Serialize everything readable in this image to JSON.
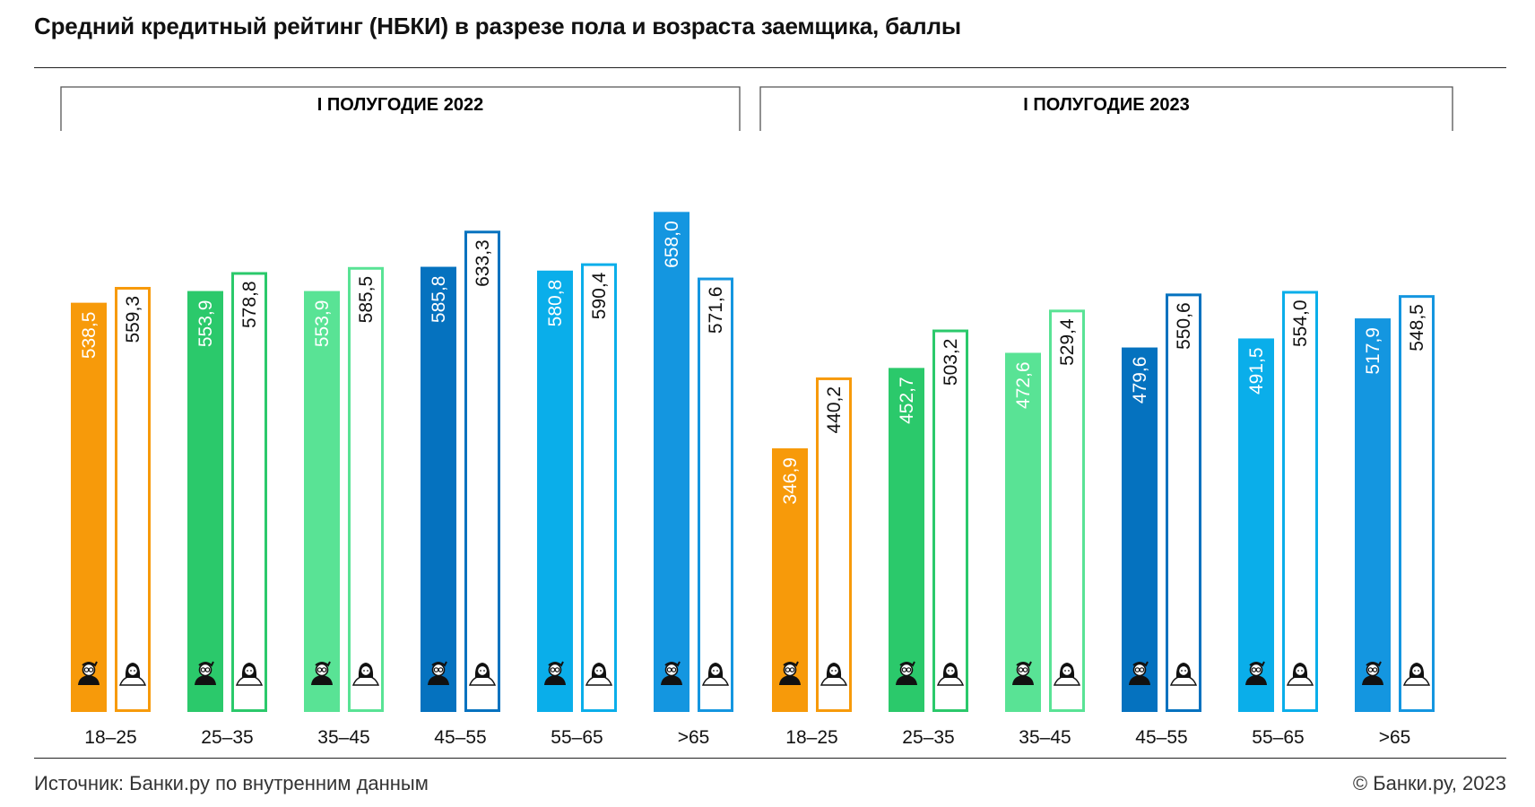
{
  "title": "Средний кредитный рейтинг (НБКИ) в разрезе пола и возраста заемщика, баллы",
  "footer": {
    "source": "Источник: Банки.ру по внутренним данным",
    "copyright": "© Банки.ру, 2023"
  },
  "colors": {
    "18-25": "#F79A0A",
    "25-35": "#2BC96B",
    "35-45": "#59E395",
    "45-55": "#0572BF",
    "55-65": "#0AAEEA",
    ">65": "#1496E0"
  },
  "icons": [
    "man-icon",
    "woman-icon"
  ],
  "chart_data": {
    "type": "bar",
    "categories": [
      "18–25",
      "25–35",
      "35–45",
      "45–55",
      "55–65",
      ">65"
    ],
    "ylim": [
      0,
      700
    ],
    "grid": false,
    "panels": [
      {
        "title": "I ПОЛУГОДИЕ 2022",
        "series": [
          {
            "values": [
              538.5,
              553.9,
              553.9,
              585.8,
              580.8,
              658.0
            ],
            "labels": [
              "538,5",
              "553,9",
              "553,9",
              "585,8",
              "580,8",
              "658,0"
            ]
          },
          {
            "values": [
              559.3,
              578.8,
              585.5,
              633.3,
              590.4,
              571.6
            ],
            "labels": [
              "559,3",
              "578,8",
              "585,5",
              "633,3",
              "590,4",
              "571,6"
            ]
          }
        ]
      },
      {
        "title": "I ПОЛУГОДИЕ 2023",
        "series": [
          {
            "values": [
              346.9,
              452.7,
              472.6,
              479.6,
              491.5,
              517.9
            ],
            "labels": [
              "346,9",
              "452,7",
              "472,6",
              "479,6",
              "491,5",
              "517,9"
            ]
          },
          {
            "values": [
              440.2,
              503.2,
              529.4,
              550.6,
              554.0,
              548.5
            ],
            "labels": [
              "440,2",
              "503,2",
              "529,4",
              "550,6",
              "554,0",
              "548,5"
            ]
          }
        ]
      }
    ]
  }
}
